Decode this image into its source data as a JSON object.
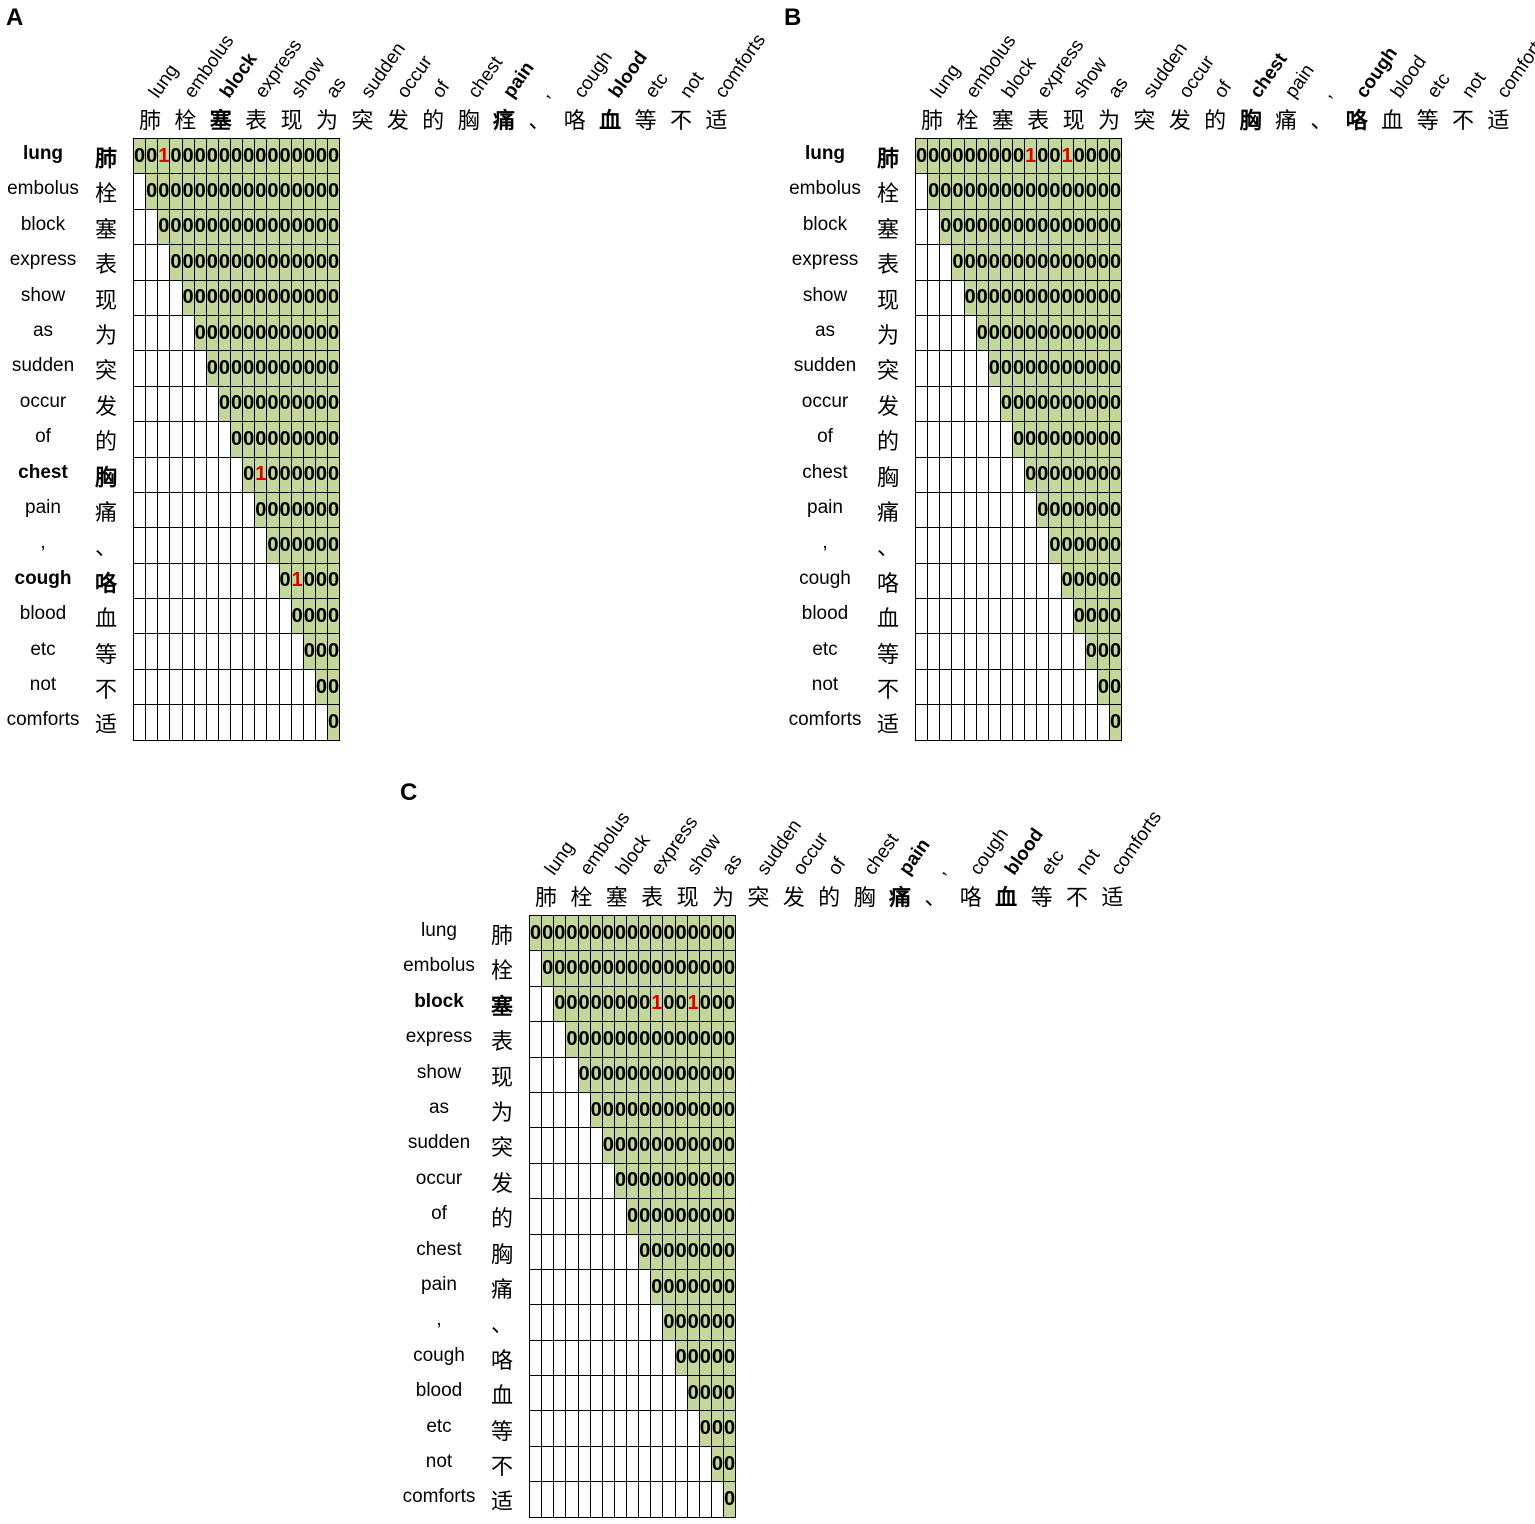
{
  "words_en": [
    "lung",
    "embolus",
    "block",
    "express",
    "show",
    "as",
    "sudden",
    "occur",
    "of",
    "chest",
    "pain",
    ",",
    "cough",
    "blood",
    "etc",
    "not",
    "comforts"
  ],
  "words_zh": [
    "肺",
    "栓",
    "塞",
    "表",
    "现",
    "为",
    "突",
    "发",
    "的",
    "胸",
    "痛",
    "、",
    "咯",
    "血",
    "等",
    "不",
    "适"
  ],
  "colors": {
    "fill": "#c4d79b",
    "highlight_value": "#e00000",
    "grid_line": "#000000"
  },
  "panels": [
    {
      "label": "A",
      "bold_words": [
        0,
        2,
        9,
        10,
        12,
        13
      ],
      "bold_rows": [
        0,
        9,
        12
      ],
      "bold_cols": [
        2,
        10,
        13
      ],
      "ones": [
        [
          0,
          2
        ],
        [
          9,
          10
        ],
        [
          12,
          13
        ]
      ]
    },
    {
      "label": "B",
      "bold_words": [
        0,
        9,
        12
      ],
      "bold_rows": [
        0
      ],
      "bold_cols": [
        9,
        12
      ],
      "ones": [
        [
          0,
          9
        ],
        [
          0,
          12
        ]
      ]
    },
    {
      "label": "C",
      "bold_words": [
        2,
        10,
        13
      ],
      "bold_rows": [
        2
      ],
      "bold_cols": [
        10,
        13
      ],
      "ones": [
        [
          2,
          10
        ],
        [
          2,
          13
        ]
      ]
    }
  ]
}
